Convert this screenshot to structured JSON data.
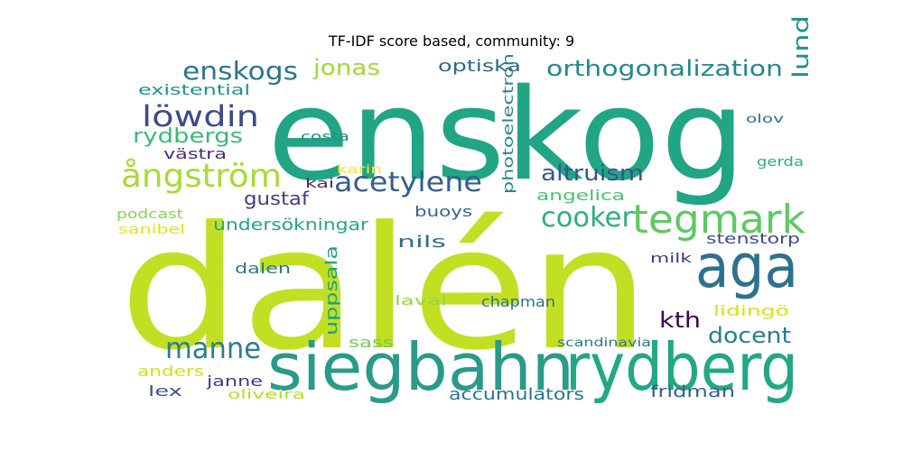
{
  "chart_data": {
    "type": "word_cloud",
    "title": "TF-IDF score based, community: 9",
    "words": [
      {
        "text": "dalén",
        "color": "#c2df23"
      },
      {
        "text": "enskog",
        "color": "#21a585"
      },
      {
        "text": "siegbahn",
        "color": "#2a9a89"
      },
      {
        "text": "rydberg",
        "color": "#22a884"
      },
      {
        "text": "aga",
        "color": "#2d718e"
      },
      {
        "text": "tegmark",
        "color": "#5ec962"
      },
      {
        "text": "ångström",
        "color": "#a8db34"
      },
      {
        "text": "manne",
        "color": "#2c7e8e"
      },
      {
        "text": "cooker",
        "color": "#2ab07f"
      },
      {
        "text": "acetylene",
        "color": "#355e8d"
      },
      {
        "text": "löwdin",
        "color": "#3e4b8a"
      },
      {
        "text": "enskogs",
        "color": "#2a768e"
      },
      {
        "text": "orthogonalization",
        "color": "#24878e"
      },
      {
        "text": "lund",
        "color": "#21918c"
      },
      {
        "text": "jonas",
        "color": "#a0da39"
      },
      {
        "text": "altruism",
        "color": "#3a548c"
      },
      {
        "text": "docent",
        "color": "#287d8e"
      },
      {
        "text": "kth",
        "color": "#440154"
      },
      {
        "text": "rydbergs",
        "color": "#3bbb75"
      },
      {
        "text": "accumulators",
        "color": "#2c738e"
      },
      {
        "text": "gustaf",
        "color": "#433e85"
      },
      {
        "text": "optiska",
        "color": "#31688e"
      },
      {
        "text": "undersökningar",
        "color": "#22a785"
      },
      {
        "text": "fridman",
        "color": "#33638d"
      },
      {
        "text": "uppsala",
        "color": "#1fa187"
      },
      {
        "text": "nils",
        "color": "#2f6c8e"
      },
      {
        "text": "angelica",
        "color": "#4ac16d"
      },
      {
        "text": "buoys",
        "color": "#32658e"
      },
      {
        "text": "chapman",
        "color": "#2e6f8e"
      },
      {
        "text": "stenstorp",
        "color": "#3e4a89"
      },
      {
        "text": "sass",
        "color": "#6ccd5a"
      },
      {
        "text": "existential",
        "color": "#20928c"
      },
      {
        "text": "photoelectron",
        "color": "#25848e"
      },
      {
        "text": "dalen",
        "color": "#2b748e"
      },
      {
        "text": "lidingö",
        "color": "#d8e219"
      },
      {
        "text": "anders",
        "color": "#d0e11c"
      },
      {
        "text": "janne",
        "color": "#453781"
      },
      {
        "text": "lex",
        "color": "#3b528b"
      },
      {
        "text": "västra",
        "color": "#472d7b"
      },
      {
        "text": "costa",
        "color": "#21918c"
      },
      {
        "text": "laval",
        "color": "#93d741"
      },
      {
        "text": "kai",
        "color": "#482878"
      },
      {
        "text": "karin",
        "color": "#fde725"
      },
      {
        "text": "olov",
        "color": "#2d708e"
      },
      {
        "text": "gerda",
        "color": "#29af7f"
      },
      {
        "text": "podcast",
        "color": "#86d549"
      },
      {
        "text": "sanibel",
        "color": "#e5e419"
      },
      {
        "text": "milk",
        "color": "#46307e"
      },
      {
        "text": "scandinavia",
        "color": "#2a788e"
      },
      {
        "text": "oliveira",
        "color": "#b5de2b"
      }
    ]
  }
}
